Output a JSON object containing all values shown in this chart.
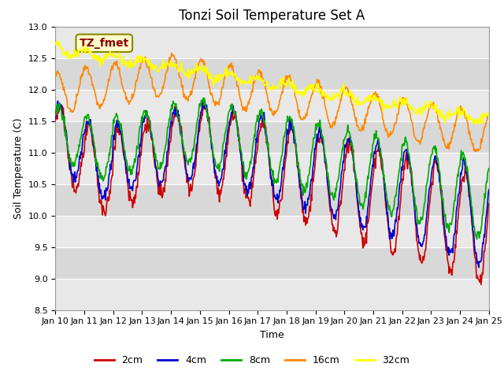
{
  "title": "Tonzi Soil Temperature Set A",
  "xlabel": "Time",
  "ylabel": "Soil Temperature (C)",
  "ylim": [
    8.5,
    13.0
  ],
  "x_tick_labels": [
    "Jan 10",
    "Jan 11",
    "Jan 12",
    "Jan 13",
    "Jan 14",
    "Jan 15",
    "Jan 16",
    "Jan 17",
    "Jan 18",
    "Jan 19",
    "Jan 20",
    "Jan 21",
    "Jan 22",
    "Jan 23",
    "Jan 24",
    "Jan 25"
  ],
  "yticks": [
    8.5,
    9.0,
    9.5,
    10.0,
    10.5,
    11.0,
    11.5,
    12.0,
    12.5,
    13.0
  ],
  "line_colors": {
    "2cm": "#cc0000",
    "4cm": "#0000cc",
    "8cm": "#00aa00",
    "16cm": "#ff8800",
    "32cm": "#ffff00"
  },
  "annotation_text": "TZ_fmet",
  "annotation_color": "#8b0000",
  "annotation_bg": "#ffffcc",
  "title_fontsize": 12,
  "axis_fontsize": 9,
  "tick_fontsize": 8
}
